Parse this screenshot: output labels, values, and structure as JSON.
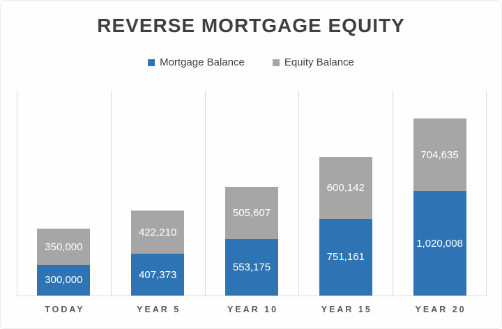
{
  "title": "REVERSE MORTGAGE EQUITY",
  "legend": {
    "items": [
      {
        "label": "Mortgage Balance",
        "color": "#2e74b5"
      },
      {
        "label": "Equity Balance",
        "color": "#a6a6a6"
      }
    ]
  },
  "colors": {
    "mortgage_blue": "#2e74b5",
    "equity_gray": "#a6a6a6",
    "gridline": "#d9d9d9",
    "title_text": "#3f3f3f",
    "axis_label_text": "#595959",
    "value_label_text": "#ffffff"
  },
  "chart_data": {
    "type": "bar",
    "stacked": true,
    "title": "REVERSE MORTGAGE EQUITY",
    "categories": [
      "TODAY",
      "YEAR 5",
      "YEAR 10",
      "YEAR 15",
      "YEAR 20"
    ],
    "series": [
      {
        "name": "Mortgage Balance",
        "color": "#2e74b5",
        "values": [
          300000,
          407373,
          553175,
          751161,
          1020008
        ],
        "labels": [
          "300,000",
          "407,373",
          "553,175",
          "751,161",
          "1,020,008"
        ]
      },
      {
        "name": "Equity Balance",
        "color": "#a6a6a6",
        "values": [
          350000,
          422210,
          505607,
          600142,
          704635
        ],
        "labels": [
          "350,000",
          "422,210",
          "505,607",
          "600,142",
          "704,635"
        ]
      }
    ],
    "totals": [
      650000,
      829583,
      1058782,
      1351303,
      1724643
    ],
    "xlabel": "",
    "ylabel": "",
    "ylim": [
      0,
      2000000
    ],
    "grid": "vertical-category-separators",
    "legend_position": "top-center",
    "data_labels": "inside-center-white"
  }
}
